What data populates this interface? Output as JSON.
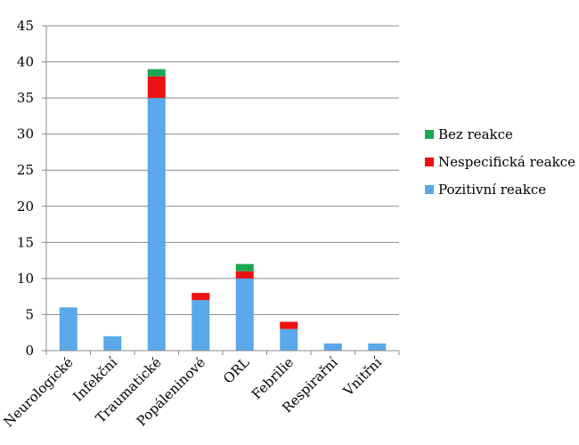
{
  "chart_data": {
    "type": "bar",
    "stacked": true,
    "categories": [
      "Neurologické",
      "Infekční",
      "Traumatické",
      "Popáleninové",
      "ORL",
      "Febrilie",
      "Respirařní",
      "Vnitřní"
    ],
    "series": [
      {
        "name": "Pozitivní reakce",
        "color": "#5aa8ea",
        "values": [
          6,
          2,
          35,
          7,
          10,
          3,
          1,
          1
        ]
      },
      {
        "name": "Nespecifická reakce",
        "color": "#ee1111",
        "values": [
          0,
          0,
          3,
          1,
          1,
          1,
          0,
          0
        ]
      },
      {
        "name": "Bez reakce",
        "color": "#1aa84f",
        "values": [
          0,
          0,
          1,
          0,
          1,
          0,
          0,
          0
        ]
      }
    ],
    "ylim": [
      0,
      45
    ],
    "yticks": [
      0,
      5,
      10,
      15,
      20,
      25,
      30,
      35,
      40,
      45
    ],
    "grid": true,
    "legend_position": "right",
    "legend_order": [
      "Bez reakce",
      "Nespecifická reakce",
      "Pozitivní reakce"
    ]
  }
}
